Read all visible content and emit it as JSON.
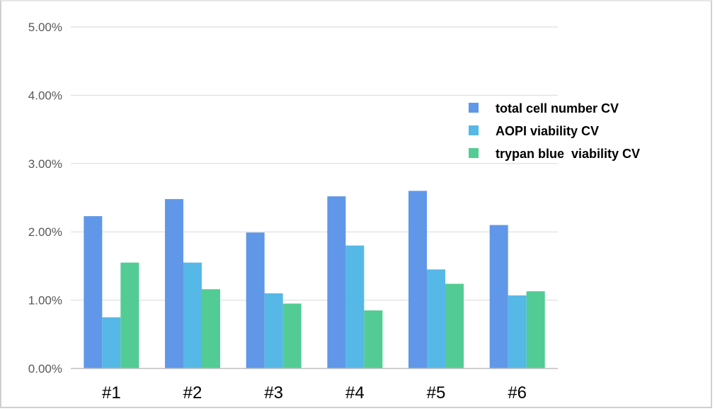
{
  "chart_data": {
    "type": "bar",
    "categories": [
      "#1",
      "#2",
      "#3",
      "#4",
      "#5",
      "#6"
    ],
    "series": [
      {
        "name": "total cell number CV",
        "values": [
          2.23,
          2.48,
          1.99,
          2.52,
          2.6,
          2.1
        ],
        "color": "#6097e8"
      },
      {
        "name": "AOPI viability CV",
        "values": [
          0.75,
          1.55,
          1.1,
          1.8,
          1.45,
          1.07
        ],
        "color": "#56b8e6"
      },
      {
        "name": "trypan blue  viability CV",
        "values": [
          1.55,
          1.16,
          0.95,
          0.85,
          1.24,
          1.13
        ],
        "color": "#52cc94"
      }
    ],
    "ylim": [
      0,
      5
    ],
    "yticks": [
      0,
      1,
      2,
      3,
      4,
      5
    ],
    "ytick_labels": [
      "0.00%",
      "1.00%",
      "2.00%",
      "3.00%",
      "4.00%",
      "5.00%"
    ],
    "grid": true,
    "legend_position": "right",
    "title": "",
    "xlabel": "",
    "ylabel": ""
  }
}
